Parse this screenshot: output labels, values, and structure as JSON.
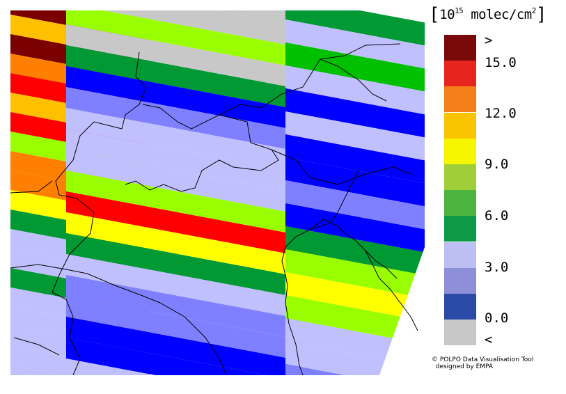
{
  "legend": {
    "title_pre": "[",
    "title_unit_base": "10",
    "title_unit_exp": "15",
    "title_rest": " molec/cm",
    "title_rest_exp": "2",
    "title_post": "]",
    "classes": [
      {
        "color": "#7a0a0a"
      },
      {
        "color": "#e8241e"
      },
      {
        "color": "#f3801b"
      },
      {
        "color": "#fbc400"
      },
      {
        "color": "#f6f600"
      },
      {
        "color": "#9fce3a"
      },
      {
        "color": "#4cb43e"
      },
      {
        "color": "#0c9a46"
      },
      {
        "color": "#bdbff2"
      },
      {
        "color": "#8d90d8"
      },
      {
        "color": "#2a4aa8"
      },
      {
        "color": "#c8c8c8"
      }
    ],
    "tick_labels": [
      ">",
      "15.0",
      "12.0",
      "9.0",
      "6.0",
      "3.0",
      "0.0",
      "<"
    ]
  },
  "palette": {
    "dark_red": "#7b0000",
    "red": "#ff0000",
    "orange": "#ff8000",
    "amber": "#ffc000",
    "yellow": "#ffff00",
    "light_green": "#99ff00",
    "green": "#00c000",
    "dark_green": "#009933",
    "pale_blue": "#c0c0ff",
    "mid_blue": "#7f80ff",
    "blue": "#0000ff",
    "grey": "#c8c8c8",
    "outline": "#000000"
  },
  "credit": {
    "line1": "© POLPO Data Visualisation Tool",
    "line2": "designed by EMPA"
  }
}
